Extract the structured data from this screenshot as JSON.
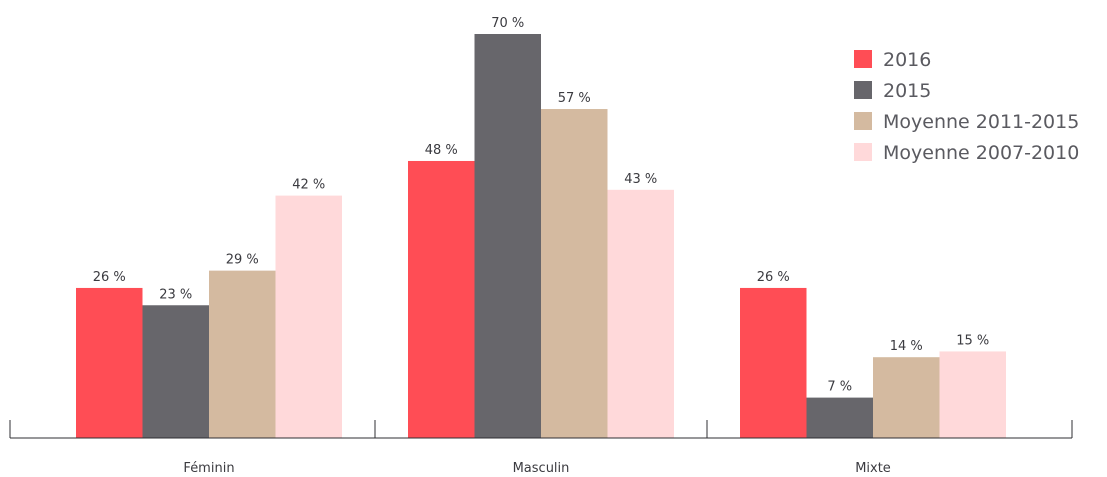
{
  "chart_data": {
    "type": "bar",
    "title": "",
    "xlabel": "",
    "ylabel": "",
    "ylim": [
      0,
      75
    ],
    "grid": false,
    "legend_position": "top-right",
    "value_suffix": " %",
    "categories": [
      "Féminin",
      "Masculin",
      "Mixte"
    ],
    "series": [
      {
        "name": "2016",
        "color": "#ff4d55",
        "values": [
          26,
          48,
          26
        ]
      },
      {
        "name": "2015",
        "color": "#67666b",
        "values": [
          23,
          70,
          7
        ]
      },
      {
        "name": "Moyenne 2011-2015",
        "color": "#d4baa0",
        "values": [
          29,
          57,
          14
        ]
      },
      {
        "name": "Moyenne 2007-2010",
        "color": "#ffd9da",
        "values": [
          42,
          43,
          15
        ]
      }
    ]
  }
}
